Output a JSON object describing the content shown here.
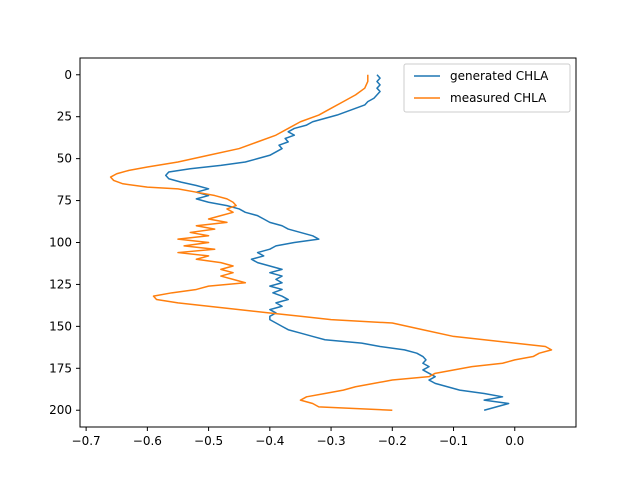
{
  "chart_data": {
    "type": "line",
    "title": "",
    "xlabel": "",
    "ylabel": "",
    "xlim": [
      -0.71,
      0.1
    ],
    "ylim": [
      210,
      -10
    ],
    "y_inverted": true,
    "grid": false,
    "legend_position": "top-right",
    "xticks": [
      -0.7,
      -0.6,
      -0.5,
      -0.4,
      -0.3,
      -0.2,
      -0.1,
      0.0
    ],
    "xtick_labels": [
      "−0.7",
      "−0.6",
      "−0.5",
      "−0.4",
      "−0.3",
      "−0.2",
      "−0.1",
      "0.0"
    ],
    "yticks": [
      0,
      25,
      50,
      75,
      100,
      125,
      150,
      175,
      200
    ],
    "ytick_labels": [
      "0",
      "25",
      "50",
      "75",
      "100",
      "125",
      "150",
      "175",
      "200"
    ],
    "series": [
      {
        "name": "generated CHLA",
        "color": "#1f77b4",
        "points": [
          [
            -0.225,
            0
          ],
          [
            -0.22,
            2
          ],
          [
            -0.225,
            4
          ],
          [
            -0.22,
            6
          ],
          [
            -0.225,
            8
          ],
          [
            -0.22,
            10
          ],
          [
            -0.225,
            12
          ],
          [
            -0.23,
            14
          ],
          [
            -0.24,
            16
          ],
          [
            -0.245,
            18
          ],
          [
            -0.26,
            20
          ],
          [
            -0.275,
            22
          ],
          [
            -0.29,
            24
          ],
          [
            -0.31,
            26
          ],
          [
            -0.33,
            28
          ],
          [
            -0.34,
            30
          ],
          [
            -0.36,
            32
          ],
          [
            -0.37,
            34
          ],
          [
            -0.36,
            36
          ],
          [
            -0.375,
            38
          ],
          [
            -0.37,
            40
          ],
          [
            -0.385,
            42
          ],
          [
            -0.38,
            44
          ],
          [
            -0.39,
            46
          ],
          [
            -0.4,
            48
          ],
          [
            -0.42,
            50
          ],
          [
            -0.44,
            52
          ],
          [
            -0.48,
            54
          ],
          [
            -0.53,
            56
          ],
          [
            -0.565,
            58
          ],
          [
            -0.57,
            60
          ],
          [
            -0.565,
            62
          ],
          [
            -0.545,
            64
          ],
          [
            -0.52,
            66
          ],
          [
            -0.5,
            68
          ],
          [
            -0.52,
            70
          ],
          [
            -0.5,
            72
          ],
          [
            -0.52,
            74
          ],
          [
            -0.5,
            76
          ],
          [
            -0.47,
            78
          ],
          [
            -0.45,
            80
          ],
          [
            -0.44,
            82
          ],
          [
            -0.42,
            84
          ],
          [
            -0.41,
            86
          ],
          [
            -0.4,
            88
          ],
          [
            -0.38,
            90
          ],
          [
            -0.37,
            92
          ],
          [
            -0.35,
            94
          ],
          [
            -0.33,
            96
          ],
          [
            -0.32,
            98
          ],
          [
            -0.36,
            100
          ],
          [
            -0.39,
            102
          ],
          [
            -0.4,
            104
          ],
          [
            -0.42,
            106
          ],
          [
            -0.41,
            108
          ],
          [
            -0.43,
            110
          ],
          [
            -0.42,
            112
          ],
          [
            -0.4,
            114
          ],
          [
            -0.38,
            116
          ],
          [
            -0.4,
            118
          ],
          [
            -0.38,
            120
          ],
          [
            -0.39,
            122
          ],
          [
            -0.38,
            124
          ],
          [
            -0.4,
            126
          ],
          [
            -0.38,
            128
          ],
          [
            -0.395,
            130
          ],
          [
            -0.38,
            132
          ],
          [
            -0.37,
            134
          ],
          [
            -0.39,
            136
          ],
          [
            -0.38,
            138
          ],
          [
            -0.4,
            140
          ],
          [
            -0.39,
            142
          ],
          [
            -0.4,
            144
          ],
          [
            -0.4,
            146
          ],
          [
            -0.39,
            148
          ],
          [
            -0.38,
            150
          ],
          [
            -0.37,
            152
          ],
          [
            -0.35,
            154
          ],
          [
            -0.33,
            156
          ],
          [
            -0.31,
            158
          ],
          [
            -0.25,
            160
          ],
          [
            -0.22,
            162
          ],
          [
            -0.18,
            164
          ],
          [
            -0.16,
            166
          ],
          [
            -0.15,
            168
          ],
          [
            -0.145,
            170
          ],
          [
            -0.15,
            172
          ],
          [
            -0.14,
            174
          ],
          [
            -0.15,
            176
          ],
          [
            -0.14,
            178
          ],
          [
            -0.13,
            180
          ],
          [
            -0.14,
            182
          ],
          [
            -0.13,
            184
          ],
          [
            -0.11,
            186
          ],
          [
            -0.09,
            188
          ],
          [
            -0.05,
            190
          ],
          [
            -0.02,
            192
          ],
          [
            -0.05,
            194
          ],
          [
            -0.01,
            196
          ],
          [
            -0.03,
            198
          ],
          [
            -0.05,
            200
          ]
        ]
      },
      {
        "name": "measured CHLA",
        "color": "#ff7f0e",
        "points": [
          [
            -0.24,
            0
          ],
          [
            -0.24,
            4
          ],
          [
            -0.245,
            8
          ],
          [
            -0.26,
            12
          ],
          [
            -0.28,
            16
          ],
          [
            -0.3,
            20
          ],
          [
            -0.32,
            24
          ],
          [
            -0.35,
            28
          ],
          [
            -0.37,
            32
          ],
          [
            -0.39,
            36
          ],
          [
            -0.42,
            40
          ],
          [
            -0.45,
            44
          ],
          [
            -0.5,
            48
          ],
          [
            -0.55,
            52
          ],
          [
            -0.6,
            55
          ],
          [
            -0.63,
            57
          ],
          [
            -0.65,
            59
          ],
          [
            -0.66,
            61
          ],
          [
            -0.655,
            63
          ],
          [
            -0.64,
            65
          ],
          [
            -0.6,
            67
          ],
          [
            -0.55,
            68
          ],
          [
            -0.52,
            70
          ],
          [
            -0.49,
            72
          ],
          [
            -0.47,
            74
          ],
          [
            -0.46,
            76
          ],
          [
            -0.455,
            78
          ],
          [
            -0.47,
            80
          ],
          [
            -0.46,
            82
          ],
          [
            -0.48,
            84
          ],
          [
            -0.5,
            86
          ],
          [
            -0.47,
            88
          ],
          [
            -0.52,
            90
          ],
          [
            -0.49,
            92
          ],
          [
            -0.53,
            94
          ],
          [
            -0.5,
            96
          ],
          [
            -0.55,
            98
          ],
          [
            -0.5,
            100
          ],
          [
            -0.54,
            102
          ],
          [
            -0.49,
            104
          ],
          [
            -0.55,
            106
          ],
          [
            -0.5,
            108
          ],
          [
            -0.52,
            110
          ],
          [
            -0.48,
            112
          ],
          [
            -0.46,
            114
          ],
          [
            -0.48,
            116
          ],
          [
            -0.46,
            118
          ],
          [
            -0.48,
            120
          ],
          [
            -0.46,
            122
          ],
          [
            -0.44,
            124
          ],
          [
            -0.5,
            126
          ],
          [
            -0.52,
            128
          ],
          [
            -0.56,
            130
          ],
          [
            -0.59,
            132
          ],
          [
            -0.585,
            134
          ],
          [
            -0.55,
            136
          ],
          [
            -0.5,
            138
          ],
          [
            -0.45,
            140
          ],
          [
            -0.4,
            142
          ],
          [
            -0.35,
            144
          ],
          [
            -0.3,
            146
          ],
          [
            -0.2,
            148
          ],
          [
            -0.15,
            152
          ],
          [
            -0.1,
            156
          ],
          [
            -0.05,
            158
          ],
          [
            0.0,
            160
          ],
          [
            0.05,
            162
          ],
          [
            0.06,
            164
          ],
          [
            0.04,
            166
          ],
          [
            0.03,
            168
          ],
          [
            0.0,
            170
          ],
          [
            -0.02,
            172
          ],
          [
            -0.07,
            174
          ],
          [
            -0.1,
            176
          ],
          [
            -0.13,
            178
          ],
          [
            -0.14,
            180
          ],
          [
            -0.2,
            182
          ],
          [
            -0.23,
            184
          ],
          [
            -0.26,
            186
          ],
          [
            -0.28,
            188
          ],
          [
            -0.31,
            190
          ],
          [
            -0.34,
            192
          ],
          [
            -0.35,
            194
          ],
          [
            -0.33,
            196
          ],
          [
            -0.32,
            198
          ],
          [
            -0.2,
            200
          ]
        ]
      }
    ]
  }
}
